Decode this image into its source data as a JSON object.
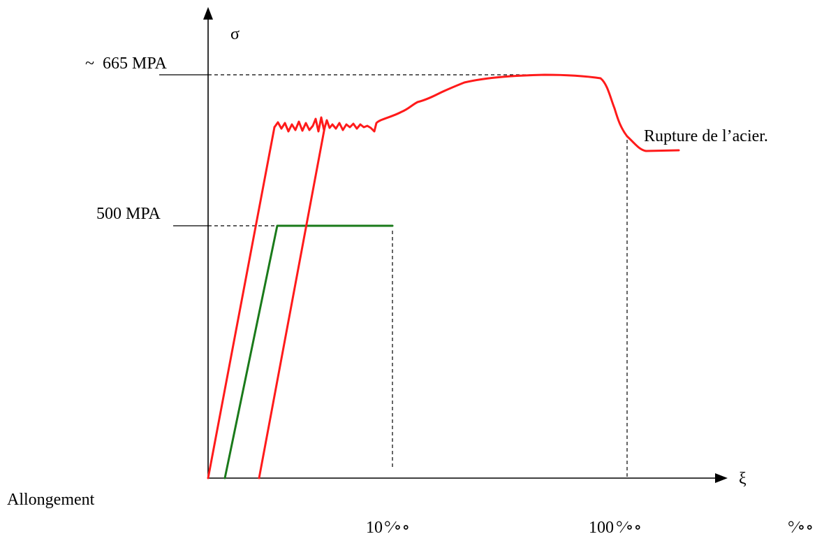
{
  "diagram": {
    "y_axis_symbol": "σ",
    "x_axis_symbol": "ξ",
    "x_axis_caption": "Allongement",
    "level_high_label": "~  665 MPA",
    "level_low_label": "500 MPA",
    "annotation_rupture": "Rupture de l’acier.",
    "x_tick_1_number": "10",
    "x_tick_2_number": "100",
    "per_mille_symbol": "°⁄∘∘",
    "unit_mark": "°⁄∘∘",
    "colors": {
      "real_steel_curve": "#ff1a1a",
      "idealized_curve": "#1a7a1a",
      "axes": "#000000"
    }
  }
}
